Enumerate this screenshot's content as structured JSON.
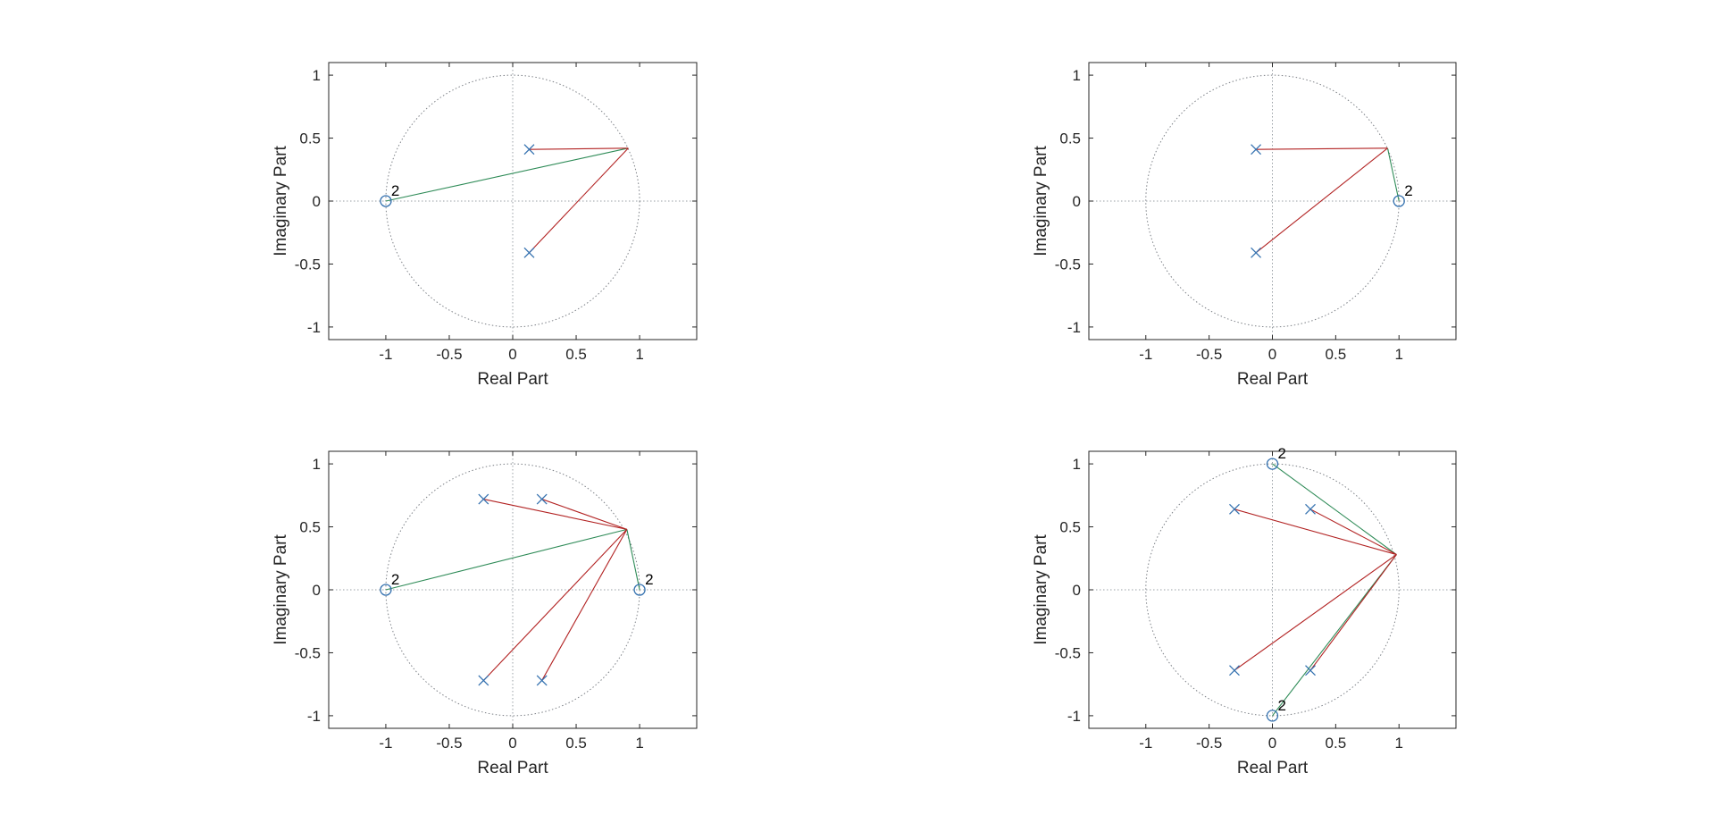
{
  "chart_data": [
    {
      "type": "scatter",
      "xlabel": "Real Part",
      "ylabel": "Imaginary Part",
      "xticks": [
        -1,
        -0.5,
        0,
        0.5,
        1
      ],
      "xtick_labels": [
        "-1",
        "-0.5",
        "0",
        "0.5",
        "1"
      ],
      "yticks": [
        -1,
        -0.5,
        0,
        0.5,
        1
      ],
      "ytick_labels": [
        "-1",
        "-0.5",
        "0",
        "0.5",
        "1"
      ],
      "xlim": [
        -1.45,
        1.45
      ],
      "ylim": [
        -1.1,
        1.1
      ],
      "unit_circle": true,
      "eval_point": [
        0.91,
        0.42
      ],
      "poles": [
        [
          0.13,
          0.41
        ],
        [
          0.13,
          -0.41
        ]
      ],
      "zeros": [
        {
          "x": -1,
          "y": 0,
          "multiplicity": "2"
        }
      ]
    },
    {
      "type": "scatter",
      "xlabel": "Real Part",
      "ylabel": "Imaginary Part",
      "xticks": [
        -1,
        -0.5,
        0,
        0.5,
        1
      ],
      "xtick_labels": [
        "-1",
        "-0.5",
        "0",
        "0.5",
        "1"
      ],
      "yticks": [
        -1,
        -0.5,
        0,
        0.5,
        1
      ],
      "ytick_labels": [
        "-1",
        "-0.5",
        "0",
        "0.5",
        "1"
      ],
      "xlim": [
        -1.45,
        1.45
      ],
      "ylim": [
        -1.1,
        1.1
      ],
      "unit_circle": true,
      "eval_point": [
        0.91,
        0.42
      ],
      "poles": [
        [
          -0.13,
          0.41
        ],
        [
          -0.13,
          -0.41
        ]
      ],
      "zeros": [
        {
          "x": 1,
          "y": 0,
          "multiplicity": "2"
        }
      ]
    },
    {
      "type": "scatter",
      "xlabel": "Real Part",
      "ylabel": "Imaginary Part",
      "xticks": [
        -1,
        -0.5,
        0,
        0.5,
        1
      ],
      "xtick_labels": [
        "-1",
        "-0.5",
        "0",
        "0.5",
        "1"
      ],
      "yticks": [
        -1,
        -0.5,
        0,
        0.5,
        1
      ],
      "ytick_labels": [
        "-1",
        "-0.5",
        "0",
        "0.5",
        "1"
      ],
      "xlim": [
        -1.45,
        1.45
      ],
      "ylim": [
        -1.1,
        1.1
      ],
      "unit_circle": true,
      "eval_point": [
        0.9,
        0.48
      ],
      "poles": [
        [
          -0.23,
          0.72
        ],
        [
          0.23,
          0.72
        ],
        [
          -0.23,
          -0.72
        ],
        [
          0.23,
          -0.72
        ]
      ],
      "zeros": [
        {
          "x": -1,
          "y": 0,
          "multiplicity": "2"
        },
        {
          "x": 1,
          "y": 0,
          "multiplicity": "2"
        }
      ]
    },
    {
      "type": "scatter",
      "xlabel": "Real Part",
      "ylabel": "Imaginary Part",
      "xticks": [
        -1,
        -0.5,
        0,
        0.5,
        1
      ],
      "xtick_labels": [
        "-1",
        "-0.5",
        "0",
        "0.5",
        "1"
      ],
      "yticks": [
        -1,
        -0.5,
        0,
        0.5,
        1
      ],
      "ytick_labels": [
        "-1",
        "-0.5",
        "0",
        "0.5",
        "1"
      ],
      "xlim": [
        -1.45,
        1.45
      ],
      "ylim": [
        -1.1,
        1.1
      ],
      "unit_circle": true,
      "eval_point": [
        0.98,
        0.28
      ],
      "poles": [
        [
          -0.3,
          0.64
        ],
        [
          0.3,
          0.64
        ],
        [
          -0.3,
          -0.64
        ],
        [
          0.3,
          -0.64
        ]
      ],
      "zeros": [
        {
          "x": 0,
          "y": 1,
          "multiplicity": "2"
        },
        {
          "x": 0,
          "y": -1,
          "multiplicity": "2"
        }
      ]
    }
  ],
  "colors": {
    "pole_vector": "#b22222",
    "zero_vector": "#2e8b57",
    "marker": "#3572b0",
    "guide": "#9aa0a6",
    "axes": "#262626",
    "text": "#262626"
  }
}
